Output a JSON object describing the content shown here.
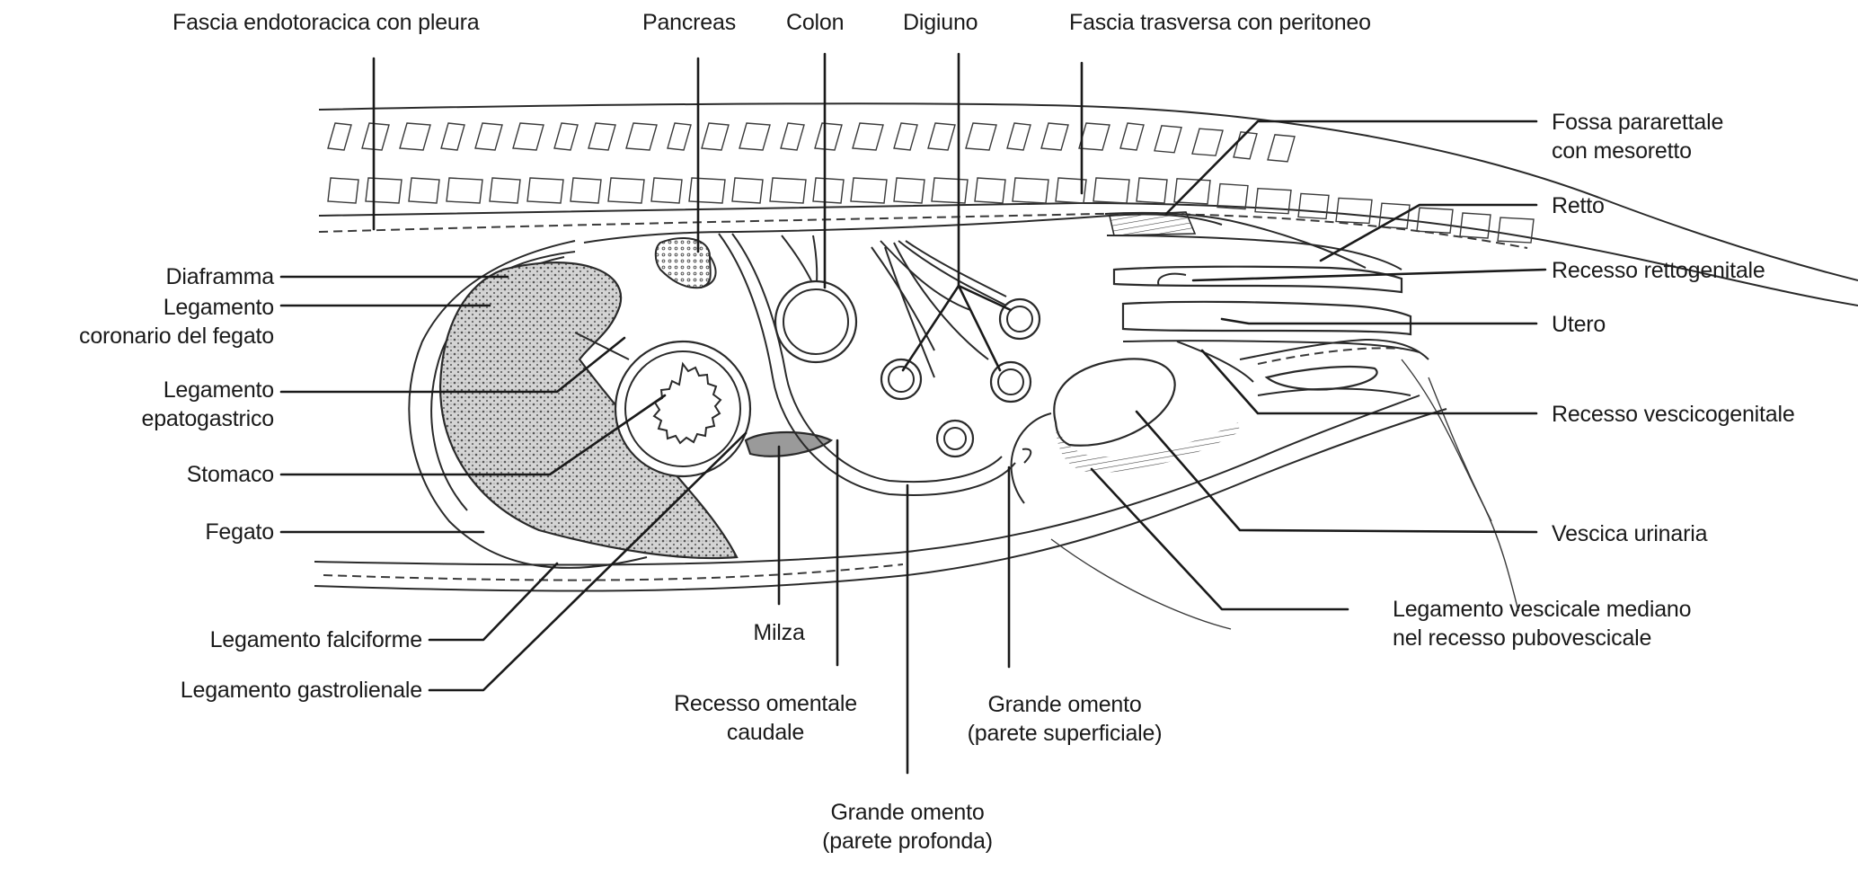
{
  "labels": {
    "fascia_endotoracica": "Fascia endotoracica con pleura",
    "pancreas": "Pancreas",
    "colon": "Colon",
    "digiuno": "Digiuno",
    "fascia_trasversa": "Fascia trasversa con peritoneo",
    "fossa_pararettale": "Fossa pararettale\ncon mesoretto",
    "retto": "Retto",
    "recesso_rettogenitale": "Recesso rettogenitale",
    "utero": "Utero",
    "recesso_vescicogenitale": "Recesso vescicogenitale",
    "vescica_urinaria": "Vescica urinaria",
    "legamento_vescicale": "Legamento vescicale mediano\nnel recesso pubovescicale",
    "diaframma": "Diaframma",
    "legamento_coronario": "Legamento\ncoronario del fegato",
    "legamento_epatogastrico": "Legamento\nepatogastrico",
    "stomaco": "Stomaco",
    "fegato": "Fegato",
    "legamento_falciforme": "Legamento falciforme",
    "legamento_gastrolienale": "Legamento gastrolienale",
    "milza": "Milza",
    "recesso_omentale": "Recesso omentale\ncaudale",
    "grande_omento_superficiale": "Grande omento\n(parete superficiale)",
    "grande_omento_profonda": "Grande omento\n(parete profonda)"
  },
  "colors": {
    "line": "#1a1a1a",
    "liver_fill": "#cfcfcf",
    "spleen_fill": "#9a9a9a",
    "background": "#ffffff"
  }
}
